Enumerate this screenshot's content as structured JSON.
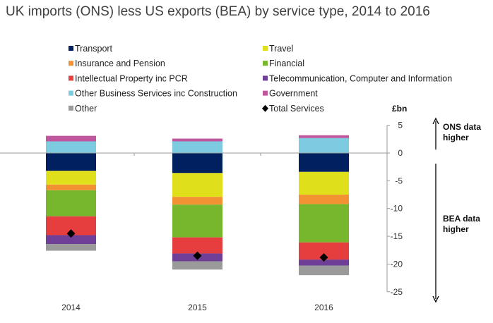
{
  "chart_data": {
    "type": "bar",
    "stacked": true,
    "title": "UK imports (ONS) less US exports (BEA) by service type, 2014 to 2016",
    "ylabel": "£bn",
    "ylim": [
      -25,
      5
    ],
    "yticks": [
      5,
      0,
      -5,
      -10,
      -15,
      -20,
      -25
    ],
    "grid": false,
    "legend_placement": "top",
    "categories": [
      "2014",
      "2015",
      "2016"
    ],
    "series": [
      {
        "name": "Transport",
        "color": "#002060",
        "values": [
          -3.2,
          -3.6,
          -3.4
        ]
      },
      {
        "name": "Travel",
        "color": "#dfe01b",
        "values": [
          -2.5,
          -4.3,
          -4.1
        ]
      },
      {
        "name": "Insurance and Pension",
        "color": "#f39232",
        "values": [
          -1.0,
          -1.4,
          -1.7
        ]
      },
      {
        "name": "Financial",
        "color": "#76b72e",
        "values": [
          -4.7,
          -5.9,
          -6.9
        ]
      },
      {
        "name": "Intellectual Property inc PCR",
        "color": "#e63e3e",
        "values": [
          -3.4,
          -2.9,
          -3.1
        ]
      },
      {
        "name": "Telecommunication, Computer and Information",
        "color": "#6f3f98",
        "values": [
          -1.6,
          -1.4,
          -1.1
        ]
      },
      {
        "name": "Other Business Services inc Construction",
        "color": "#7ccbe0",
        "values": [
          2.1,
          2.1,
          2.7
        ]
      },
      {
        "name": "Government",
        "color": "#c0579e",
        "values": [
          1.0,
          0.5,
          0.5
        ]
      },
      {
        "name": "Other",
        "color": "#9a9a9a",
        "values": [
          -1.2,
          -1.5,
          -1.7
        ]
      }
    ],
    "total": {
      "name": "Total Services",
      "color": "#000000",
      "values": [
        -14.5,
        -18.5,
        -18.8
      ]
    },
    "annotations": {
      "up": "ONS data higher",
      "down": "BEA data higher"
    }
  }
}
